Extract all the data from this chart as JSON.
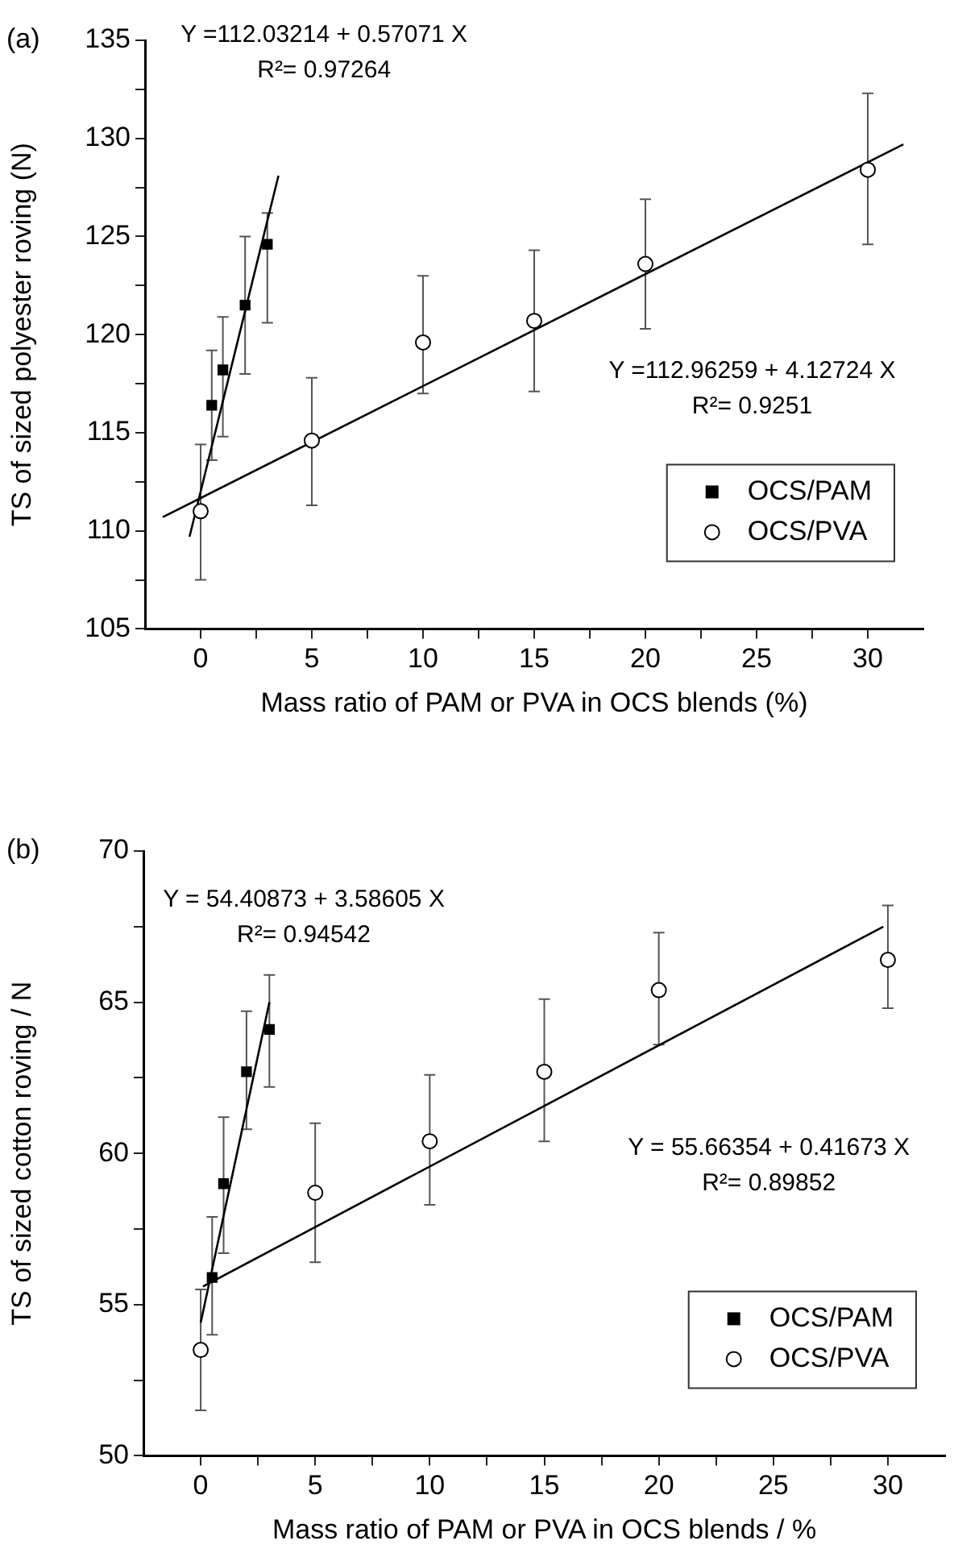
{
  "chart_data": [
    {
      "type": "scatter",
      "xlabel": "Mass ratio of PAM or PVA in OCS blends (%)",
      "ylabel": "TS of sized polyester roving (N)",
      "xlim": [
        -2.5,
        32.5
      ],
      "xticks": [
        0,
        {
          "value": 2.5,
          "label": null
        },
        5,
        {
          "value": 7.5,
          "label": null
        },
        10,
        {
          "value": 12.5,
          "label": null
        },
        15,
        {
          "value": 17.5,
          "label": null
        },
        20,
        {
          "value": 22.5,
          "label": null
        },
        25,
        {
          "value": 27.5,
          "label": null
        },
        30
      ],
      "ylim": [
        105,
        135
      ],
      "yticks": [
        105,
        {
          "value": 107.5,
          "label": null
        },
        110,
        {
          "value": 112.5,
          "label": null
        },
        115,
        {
          "value": 117.5,
          "label": null
        },
        120,
        {
          "value": 122.5,
          "label": null
        },
        125,
        {
          "value": 127.5,
          "label": null
        },
        130,
        {
          "value": 132.5,
          "label": null
        },
        135
      ],
      "legend": "bottom right",
      "annotations": [
        "(a)",
        "Y =112.03214 + 0.57071 X\nR²= 0.97264",
        "Y =112.96259 + 4.12724 X\nR²= 0.9251"
      ],
      "series": [
        {
          "name": "OCS/PAM",
          "type": "scatter",
          "marker": "square",
          "color": "#000000",
          "x": [
            0.5,
            1,
            2,
            3
          ],
          "values": [
            116.4,
            118.2,
            121.5,
            124.6
          ],
          "errors": [
            [
              113.6,
              119.2
            ],
            [
              114.8,
              120.9
            ],
            [
              118.0,
              125.0
            ],
            [
              120.6,
              126.2
            ]
          ]
        },
        {
          "name": "OCS/PVA",
          "type": "scatter",
          "marker": "circle",
          "color": "#000000",
          "x": [
            0,
            5,
            10,
            15,
            20,
            30
          ],
          "values": [
            111.0,
            114.6,
            119.6,
            120.7,
            123.6,
            128.4
          ],
          "errors": [
            [
              107.5,
              114.4
            ],
            [
              111.3,
              117.8
            ],
            [
              117.0,
              123.0
            ],
            [
              117.1,
              124.3
            ],
            [
              120.3,
              126.9
            ],
            [
              124.6,
              132.3
            ]
          ]
        },
        {
          "type": "line",
          "marker": "none",
          "color": "#000000",
          "x": [
            -0.5,
            3.5
          ],
          "values": [
            109.7,
            128.1
          ]
        },
        {
          "type": "line",
          "marker": "none",
          "color": "#000000",
          "x": [
            -1.7,
            31.6
          ],
          "values": [
            110.7,
            129.7
          ]
        }
      ]
    },
    {
      "type": "scatter",
      "xlabel": "Mass ratio of PAM or PVA in OCS blends / %",
      "ylabel": "TS of sized cotton roving / N",
      "xlim": [
        -2.5,
        32.5
      ],
      "xticks": [
        0,
        {
          "value": 2.5,
          "label": null
        },
        5,
        {
          "value": 7.5,
          "label": null
        },
        10,
        {
          "value": 12.5,
          "label": null
        },
        15,
        {
          "value": 17.5,
          "label": null
        },
        20,
        {
          "value": 22.5,
          "label": null
        },
        25,
        {
          "value": 27.5,
          "label": null
        },
        30
      ],
      "ylim": [
        50,
        70
      ],
      "yticks": [
        50,
        {
          "value": 52.5,
          "label": null
        },
        55,
        {
          "value": 57.5,
          "label": null
        },
        60,
        {
          "value": 62.5,
          "label": null
        },
        65,
        {
          "value": 67.5,
          "label": null
        },
        70
      ],
      "legend": "bottom right",
      "annotations": [
        "(b)",
        "Y = 54.40873 + 3.58605 X\nR²= 0.94542",
        "Y = 55.66354 + 0.41673 X\nR²= 0.89852"
      ],
      "series": [
        {
          "name": "OCS/PAM",
          "type": "scatter",
          "marker": "square",
          "color": "#000000",
          "x": [
            0.5,
            1,
            2,
            3
          ],
          "values": [
            55.9,
            59.0,
            62.7,
            64.1
          ],
          "errors": [
            [
              54.0,
              57.9
            ],
            [
              56.7,
              61.2
            ],
            [
              60.8,
              64.7
            ],
            [
              62.2,
              65.9
            ]
          ]
        },
        {
          "name": "OCS/PVA",
          "type": "scatter",
          "marker": "circle",
          "color": "#000000",
          "x": [
            0,
            5,
            10,
            15,
            20,
            30
          ],
          "values": [
            53.5,
            58.7,
            60.4,
            62.7,
            65.4,
            66.4
          ],
          "errors": [
            [
              51.5,
              55.5
            ],
            [
              56.4,
              61.0
            ],
            [
              58.3,
              62.6
            ],
            [
              60.4,
              65.1
            ],
            [
              63.6,
              67.3
            ],
            [
              64.8,
              68.2
            ]
          ]
        },
        {
          "type": "line",
          "marker": "none",
          "color": "#000000",
          "x": [
            0,
            3
          ],
          "values": [
            54.4,
            65.0
          ]
        },
        {
          "type": "line",
          "marker": "none",
          "color": "#000000",
          "x": [
            0.1,
            29.8
          ],
          "values": [
            55.6,
            67.5
          ]
        }
      ]
    }
  ]
}
